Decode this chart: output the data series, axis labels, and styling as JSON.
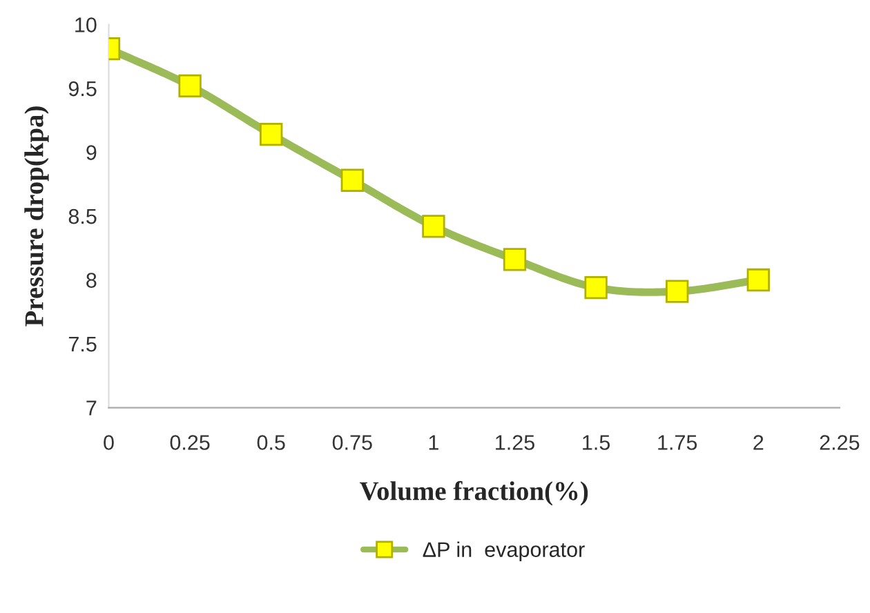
{
  "chart_data": {
    "type": "line",
    "xlabel": "Volume fraction(%)",
    "ylabel": "Pressure drop(kpa)",
    "x": [
      0,
      0.25,
      0.5,
      0.75,
      1,
      1.25,
      1.5,
      1.75,
      2
    ],
    "series": [
      {
        "name": "ΔP in  evaporator",
        "color": "#9bbb59",
        "values": [
          9.81,
          9.52,
          9.14,
          8.78,
          8.42,
          8.16,
          7.94,
          7.91,
          8.0
        ]
      }
    ],
    "xlim": [
      0,
      2.25
    ],
    "xticks": [
      0,
      0.25,
      0.5,
      0.75,
      1,
      1.25,
      1.5,
      1.75,
      2,
      2.25
    ],
    "ylim": [
      7,
      10
    ],
    "yticks": [
      7,
      7.5,
      8,
      8.5,
      9,
      9.5,
      10
    ],
    "marker": "square",
    "line_style": "solid",
    "grid": false,
    "legend": "bottom"
  }
}
